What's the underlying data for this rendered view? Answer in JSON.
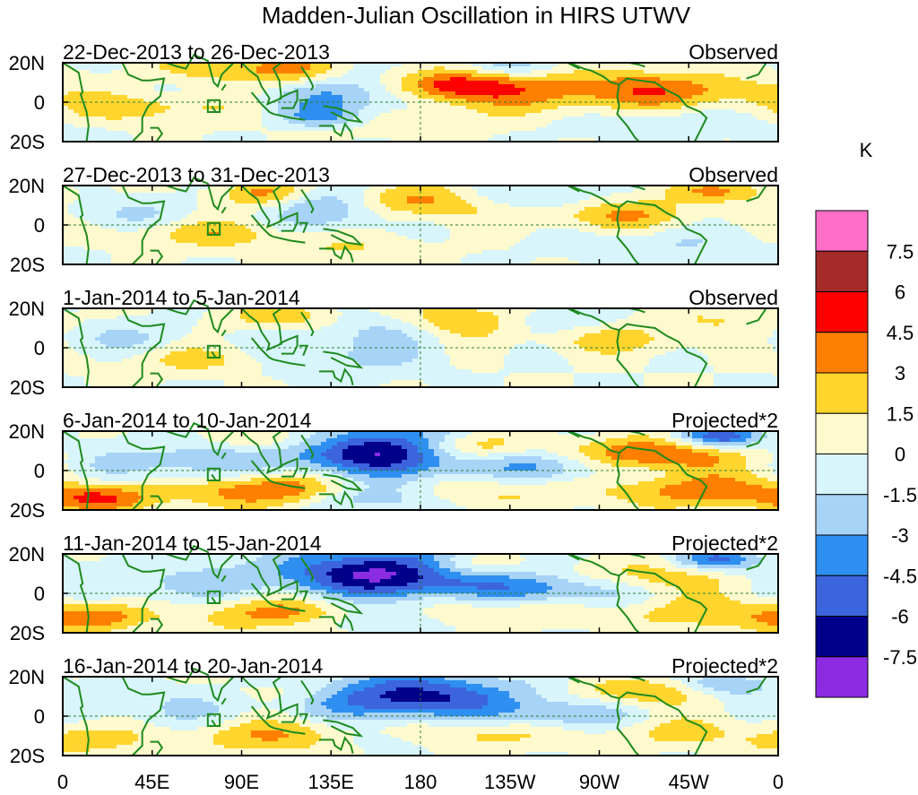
{
  "chart_data": {
    "type": "heatmap",
    "title": "Madden-Julian Oscillation in HIRS UTWV",
    "colorbar": {
      "unit": "K",
      "levels": [
        "7.5",
        "6",
        "4.5",
        "3",
        "1.5",
        "0",
        "-1.5",
        "-3",
        "-4.5",
        "-6",
        "-7.5"
      ],
      "colors": [
        "#ff6ec7",
        "#a52a2a",
        "#ff0000",
        "#ff7f00",
        "#ffd52e",
        "#fffacd",
        "#d8f5fb",
        "#a7d3f7",
        "#2f8ff0",
        "#3c64dc",
        "#00008b",
        "#8b2be2"
      ]
    },
    "x_ticks": [
      "0",
      "45E",
      "90E",
      "135E",
      "180",
      "135W",
      "90W",
      "45W",
      "0"
    ],
    "y_ticks": [
      "20N",
      "0",
      "20S"
    ],
    "xlim": [
      0,
      360
    ],
    "ylim": [
      -20,
      20
    ],
    "panels": [
      {
        "period": "22-Dec-2013 to 26-Dec-2013",
        "label": "Observed",
        "scale": 1,
        "anomalies": [
          [
            195,
            8,
            22,
            6,
            5.5
          ],
          [
            145,
            3,
            28,
            8,
            -3.5
          ],
          [
            260,
            6,
            40,
            8,
            3.5
          ],
          [
            115,
            16,
            18,
            6,
            3.5
          ],
          [
            40,
            -3,
            30,
            5,
            2.5
          ],
          [
            130,
            -8,
            15,
            4,
            -3
          ],
          [
            320,
            6,
            30,
            6,
            2.5
          ],
          [
            225,
            18,
            20,
            4,
            -2.5
          ],
          [
            75,
            18,
            20,
            5,
            2.5
          ],
          [
            300,
            -12,
            40,
            6,
            -1.5
          ],
          [
            170,
            -10,
            40,
            6,
            1.5
          ]
        ]
      },
      {
        "period": "27-Dec-2013 to 31-Dec-2013",
        "label": "Observed",
        "scale": 1,
        "anomalies": [
          [
            180,
            12,
            25,
            6,
            4
          ],
          [
            135,
            8,
            20,
            7,
            -3.5
          ],
          [
            100,
            16,
            15,
            5,
            3.5
          ],
          [
            280,
            5,
            30,
            6,
            3
          ],
          [
            70,
            -4,
            30,
            5,
            2.5
          ],
          [
            230,
            14,
            30,
            5,
            -2
          ],
          [
            330,
            17,
            20,
            4,
            3
          ],
          [
            35,
            5,
            25,
            6,
            -1.5
          ],
          [
            140,
            -12,
            30,
            5,
            1.5
          ],
          [
            300,
            -10,
            35,
            7,
            -1.5
          ]
        ]
      },
      {
        "period": "1-Jan-2014 to 5-Jan-2014",
        "label": "Observed",
        "scale": 1,
        "anomalies": [
          [
            200,
            14,
            20,
            6,
            3.5
          ],
          [
            140,
            -4,
            30,
            8,
            -2
          ],
          [
            110,
            16,
            20,
            5,
            2.5
          ],
          [
            70,
            -6,
            30,
            5,
            2
          ],
          [
            280,
            4,
            30,
            5,
            2
          ],
          [
            250,
            15,
            20,
            5,
            -1.5
          ],
          [
            30,
            5,
            25,
            6,
            -1.5
          ],
          [
            330,
            14,
            25,
            5,
            1.5
          ],
          [
            165,
            10,
            25,
            6,
            -1.5
          ]
        ]
      },
      {
        "period": "6-Jan-2014 to 10-Jan-2014",
        "label": "Projected*2",
        "scale": 1,
        "anomalies": [
          [
            165,
            10,
            40,
            9,
            -8
          ],
          [
            205,
            12,
            22,
            6,
            6
          ],
          [
            105,
            -10,
            30,
            6,
            5
          ],
          [
            20,
            -14,
            20,
            5,
            4.5
          ],
          [
            295,
            8,
            30,
            6,
            5.5
          ],
          [
            330,
            17,
            15,
            4,
            -6
          ],
          [
            110,
            16,
            25,
            5,
            3
          ],
          [
            250,
            2,
            30,
            6,
            -3
          ],
          [
            320,
            -10,
            30,
            6,
            4
          ],
          [
            55,
            4,
            30,
            7,
            -2.5
          ],
          [
            150,
            -14,
            25,
            5,
            -3
          ],
          [
            220,
            -10,
            30,
            6,
            2
          ]
        ]
      },
      {
        "period": "11-Jan-2014 to 15-Jan-2014",
        "label": "Projected*2",
        "scale": 1,
        "anomalies": [
          [
            165,
            10,
            40,
            9,
            -8
          ],
          [
            205,
            14,
            20,
            5,
            4
          ],
          [
            110,
            -10,
            30,
            6,
            4
          ],
          [
            15,
            -12,
            20,
            5,
            4
          ],
          [
            290,
            8,
            30,
            6,
            3
          ],
          [
            330,
            17,
            15,
            4,
            -5
          ],
          [
            250,
            2,
            30,
            6,
            -4
          ],
          [
            320,
            -10,
            30,
            6,
            2.5
          ],
          [
            55,
            4,
            30,
            7,
            -2
          ],
          [
            150,
            -14,
            25,
            5,
            -2
          ],
          [
            220,
            -8,
            30,
            6,
            2
          ]
        ]
      },
      {
        "period": "16-Jan-2014 to 20-Jan-2014",
        "label": "Projected*2",
        "scale": 1,
        "anomalies": [
          [
            170,
            10,
            40,
            8,
            -7
          ],
          [
            120,
            12,
            25,
            6,
            2.5
          ],
          [
            110,
            -10,
            30,
            6,
            3.5
          ],
          [
            15,
            -12,
            20,
            5,
            2.5
          ],
          [
            290,
            12,
            25,
            5,
            3
          ],
          [
            335,
            16,
            15,
            4,
            -3.5
          ],
          [
            250,
            0,
            30,
            6,
            -3
          ],
          [
            310,
            -8,
            30,
            6,
            2
          ],
          [
            55,
            4,
            30,
            7,
            -1.5
          ],
          [
            150,
            -12,
            25,
            5,
            -1.5
          ],
          [
            215,
            -8,
            30,
            6,
            2.5
          ]
        ]
      }
    ]
  }
}
